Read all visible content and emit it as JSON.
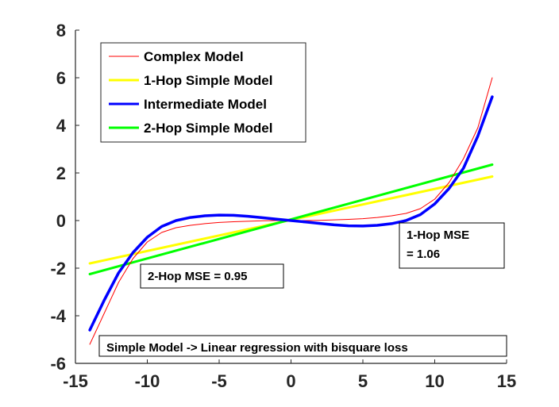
{
  "chart_data": {
    "type": "line",
    "title": "",
    "xlabel": "",
    "ylabel": "",
    "xlim": [
      -15,
      15
    ],
    "ylim": [
      -6,
      8
    ],
    "xticks": [
      -15,
      -10,
      -5,
      0,
      5,
      10,
      15
    ],
    "yticks": [
      -6,
      -4,
      -2,
      0,
      2,
      4,
      6,
      8
    ],
    "grid": false,
    "legend_position": "top-left",
    "series": [
      {
        "name": "Complex Model",
        "color": "#ff0000",
        "x": [
          -14,
          -13,
          -12,
          -11,
          -10,
          -9,
          -8,
          -7,
          -6,
          -5,
          -4,
          -3,
          -2,
          -1,
          0,
          1,
          2,
          3,
          4,
          5,
          6,
          7,
          8,
          9,
          10,
          11,
          12,
          13,
          14
        ],
        "y": [
          -5.2,
          -3.9,
          -2.6,
          -1.6,
          -0.9,
          -0.5,
          -0.3,
          -0.2,
          -0.13,
          -0.08,
          -0.05,
          -0.03,
          -0.01,
          0,
          0,
          0,
          0.01,
          0.03,
          0.05,
          0.08,
          0.13,
          0.2,
          0.3,
          0.5,
          0.9,
          1.6,
          2.6,
          3.9,
          6.0
        ]
      },
      {
        "name": "1-Hop Simple Model",
        "color": "#ffff00",
        "x": [
          -14,
          14
        ],
        "y": [
          -1.8,
          1.85
        ]
      },
      {
        "name": "Intermediate Model",
        "color": "#0000ff",
        "x": [
          -14,
          -13,
          -12,
          -11,
          -10,
          -9,
          -8,
          -7,
          -6,
          -5,
          -4,
          -3,
          -2,
          -1,
          0,
          1,
          2,
          3,
          4,
          5,
          6,
          7,
          8,
          9,
          10,
          11,
          12,
          13,
          14
        ],
        "y": [
          -4.6,
          -3.35,
          -2.2,
          -1.35,
          -0.7,
          -0.25,
          0.0,
          0.13,
          0.2,
          0.23,
          0.22,
          0.18,
          0.12,
          0.06,
          0,
          -0.06,
          -0.12,
          -0.18,
          -0.22,
          -0.23,
          -0.2,
          -0.13,
          0.0,
          0.25,
          0.7,
          1.35,
          2.2,
          3.55,
          5.2
        ]
      },
      {
        "name": "2-Hop Simple Model",
        "color": "#00ff00",
        "x": [
          -14,
          14
        ],
        "y": [
          -2.25,
          2.35
        ]
      }
    ],
    "annotations": [
      {
        "lines": [
          "2-Hop MSE = 0.95"
        ]
      },
      {
        "lines": [
          "1-Hop MSE",
          "= 1.06"
        ]
      },
      {
        "lines": [
          "Simple Model -> Linear regression with bisquare loss"
        ]
      }
    ]
  }
}
